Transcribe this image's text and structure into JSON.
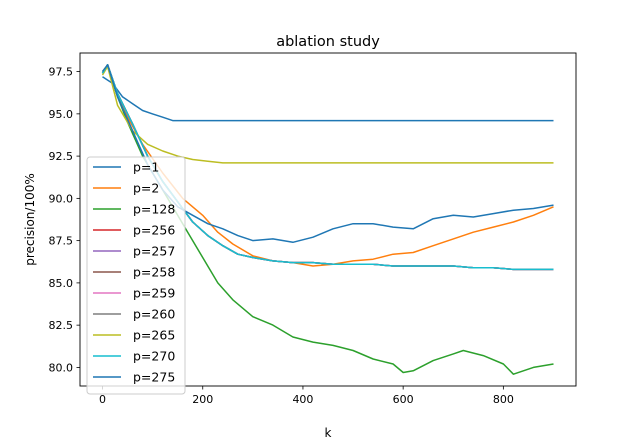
{
  "chart_data": {
    "type": "line",
    "title": "ablation study",
    "xlabel": "k",
    "ylabel": "precision/100%",
    "xlim": [
      -45,
      945
    ],
    "ylim": [
      78.9,
      98.6
    ],
    "xticks": [
      0,
      200,
      400,
      600,
      800
    ],
    "xtick_labels": [
      "0",
      "200",
      "400",
      "600",
      "800"
    ],
    "yticks": [
      80.0,
      82.5,
      85.0,
      87.5,
      90.0,
      92.5,
      95.0,
      97.5
    ],
    "ytick_labels": [
      "80.0",
      "82.5",
      "85.0",
      "87.5",
      "90.0",
      "92.5",
      "95.0",
      "97.5"
    ],
    "grid": false,
    "legend_position": "lower-left",
    "series": [
      {
        "name": "p=1",
        "color": "#1f77b4",
        "x": [
          0,
          20,
          40,
          60,
          80,
          100,
          120,
          140,
          160,
          200,
          300,
          400,
          600,
          800,
          900
        ],
        "y": [
          97.2,
          96.8,
          96.0,
          95.6,
          95.2,
          95.0,
          94.8,
          94.6,
          94.6,
          94.6,
          94.6,
          94.6,
          94.6,
          94.6,
          94.6
        ]
      },
      {
        "name": "p=2",
        "color": "#ff7f0e",
        "x": [
          0,
          10,
          30,
          50,
          80,
          120,
          160,
          200,
          230,
          260,
          300,
          340,
          380,
          420,
          460,
          500,
          540,
          580,
          620,
          660,
          700,
          740,
          780,
          820,
          860,
          900
        ],
        "y": [
          97.5,
          97.9,
          96.0,
          94.8,
          93.2,
          91.5,
          90.0,
          89.0,
          88.0,
          87.3,
          86.6,
          86.3,
          86.2,
          86.0,
          86.1,
          86.3,
          86.4,
          86.7,
          86.8,
          87.2,
          87.6,
          88.0,
          88.3,
          88.6,
          89.0,
          89.5
        ]
      },
      {
        "name": "p=128",
        "color": "#2ca02c",
        "x": [
          0,
          10,
          30,
          50,
          80,
          110,
          140,
          170,
          200,
          230,
          260,
          300,
          340,
          380,
          420,
          460,
          500,
          540,
          580,
          600,
          620,
          660,
          700,
          720,
          760,
          800,
          820,
          860,
          900
        ],
        "y": [
          97.5,
          97.8,
          96.0,
          94.5,
          92.5,
          91.0,
          89.5,
          88.0,
          86.5,
          85.0,
          84.0,
          83.0,
          82.5,
          81.8,
          81.5,
          81.3,
          81.0,
          80.5,
          80.2,
          79.7,
          79.8,
          80.4,
          80.8,
          81.0,
          80.7,
          80.2,
          79.6,
          80.0,
          80.2
        ]
      },
      {
        "name": "p=256",
        "color": "#d62728",
        "x": [
          0,
          10,
          30,
          60,
          90,
          120,
          150,
          180,
          210,
          240,
          270,
          300,
          340,
          380,
          420,
          460,
          500,
          540,
          580,
          620,
          660,
          700,
          740,
          780,
          820,
          860,
          900
        ],
        "y": [
          97.4,
          97.9,
          96.2,
          94.4,
          92.5,
          91.0,
          89.8,
          88.6,
          87.8,
          87.2,
          86.7,
          86.5,
          86.3,
          86.2,
          86.2,
          86.1,
          86.1,
          86.1,
          86.0,
          86.0,
          86.0,
          86.0,
          85.9,
          85.9,
          85.8,
          85.8,
          85.8
        ]
      },
      {
        "name": "p=257",
        "color": "#9467bd",
        "x": [
          0,
          10,
          30,
          60,
          90,
          120,
          150,
          180,
          210,
          240,
          270,
          300,
          340,
          380,
          420,
          460,
          500,
          540,
          580,
          620,
          660,
          700,
          740,
          780,
          820,
          860,
          900
        ],
        "y": [
          97.4,
          97.9,
          96.2,
          94.4,
          92.5,
          91.0,
          89.8,
          88.6,
          87.8,
          87.2,
          86.7,
          86.5,
          86.3,
          86.2,
          86.2,
          86.1,
          86.1,
          86.1,
          86.0,
          86.0,
          86.0,
          86.0,
          85.9,
          85.9,
          85.8,
          85.8,
          85.8
        ]
      },
      {
        "name": "p=258",
        "color": "#8c564b",
        "x": [
          0,
          10,
          30,
          60,
          90,
          120,
          150,
          180,
          210,
          240,
          270,
          300,
          340,
          380,
          420,
          460,
          500,
          540,
          580,
          620,
          660,
          700,
          740,
          780,
          820,
          860,
          900
        ],
        "y": [
          97.4,
          97.9,
          96.2,
          94.4,
          92.5,
          91.0,
          89.8,
          88.6,
          87.8,
          87.2,
          86.7,
          86.5,
          86.3,
          86.2,
          86.2,
          86.1,
          86.1,
          86.1,
          86.0,
          86.0,
          86.0,
          86.0,
          85.9,
          85.9,
          85.8,
          85.8,
          85.8
        ]
      },
      {
        "name": "p=259",
        "color": "#e377c2",
        "x": [
          0,
          10,
          30,
          60,
          90,
          120,
          150,
          180,
          210,
          240,
          270,
          300,
          340,
          380,
          420,
          460,
          500,
          540,
          580,
          620,
          660,
          700,
          740,
          780,
          820,
          860,
          900
        ],
        "y": [
          97.4,
          97.9,
          96.2,
          94.4,
          92.5,
          91.0,
          89.8,
          88.6,
          87.8,
          87.2,
          86.7,
          86.5,
          86.3,
          86.2,
          86.2,
          86.1,
          86.1,
          86.1,
          86.0,
          86.0,
          86.0,
          86.0,
          85.9,
          85.9,
          85.8,
          85.8,
          85.8
        ]
      },
      {
        "name": "p=260",
        "color": "#7f7f7f",
        "x": [
          0,
          10,
          30,
          60,
          90,
          120,
          150,
          180,
          210,
          240,
          270,
          300,
          340,
          380,
          420,
          460,
          500,
          540,
          580,
          620,
          660,
          700,
          740,
          780,
          820,
          860,
          900
        ],
        "y": [
          97.4,
          97.9,
          96.2,
          94.4,
          92.5,
          91.0,
          89.8,
          88.6,
          87.8,
          87.2,
          86.7,
          86.5,
          86.3,
          86.2,
          86.2,
          86.1,
          86.1,
          86.1,
          86.0,
          86.0,
          86.0,
          86.0,
          85.9,
          85.9,
          85.8,
          85.8,
          85.8
        ]
      },
      {
        "name": "p=265",
        "color": "#bcbd22",
        "x": [
          0,
          10,
          30,
          60,
          90,
          120,
          150,
          180,
          210,
          240,
          300,
          400,
          600,
          800,
          900
        ],
        "y": [
          97.3,
          97.8,
          95.5,
          94.0,
          93.2,
          92.8,
          92.5,
          92.3,
          92.2,
          92.1,
          92.1,
          92.1,
          92.1,
          92.1,
          92.1
        ]
      },
      {
        "name": "p=270",
        "color": "#17becf",
        "x": [
          0,
          10,
          30,
          60,
          90,
          120,
          150,
          180,
          210,
          240,
          270,
          300,
          340,
          380,
          420,
          460,
          500,
          540,
          580,
          620,
          660,
          700,
          740,
          780,
          820,
          860,
          900
        ],
        "y": [
          97.4,
          97.9,
          96.2,
          94.4,
          92.5,
          91.0,
          89.8,
          88.6,
          87.8,
          87.2,
          86.7,
          86.5,
          86.3,
          86.2,
          86.2,
          86.1,
          86.1,
          86.1,
          86.0,
          86.0,
          86.0,
          86.0,
          85.9,
          85.9,
          85.8,
          85.8,
          85.8
        ]
      },
      {
        "name": "p=275",
        "color": "#1f77b4",
        "x": [
          0,
          10,
          30,
          60,
          90,
          120,
          150,
          180,
          210,
          240,
          270,
          300,
          340,
          380,
          420,
          460,
          500,
          540,
          580,
          620,
          660,
          700,
          740,
          780,
          820,
          860,
          900
        ],
        "y": [
          97.5,
          97.9,
          96.0,
          94.0,
          92.0,
          90.5,
          89.5,
          89.0,
          88.5,
          88.2,
          87.8,
          87.5,
          87.6,
          87.4,
          87.7,
          88.2,
          88.5,
          88.5,
          88.3,
          88.2,
          88.8,
          89.0,
          88.9,
          89.1,
          89.3,
          89.4,
          89.6
        ]
      }
    ]
  }
}
